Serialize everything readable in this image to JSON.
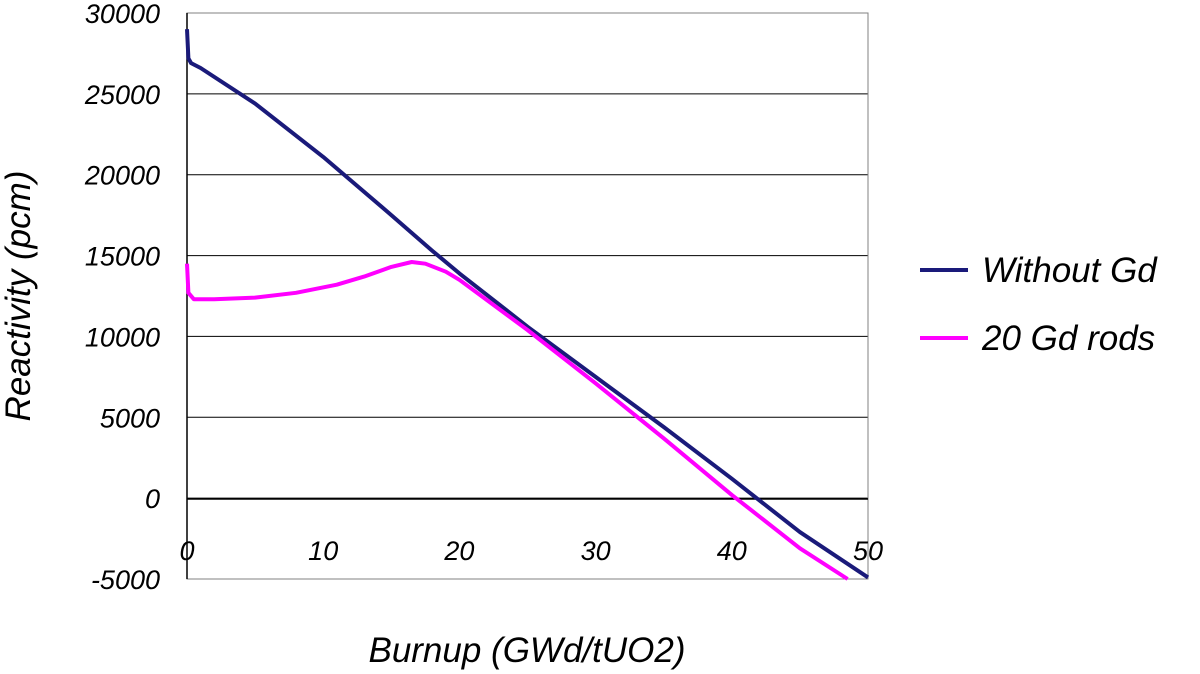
{
  "chart_data": {
    "type": "line",
    "title": "",
    "xlabel": "Burnup (GWd/tUO2)",
    "ylabel": "Reactivity (pcm)",
    "xlim": [
      0,
      50
    ],
    "ylim": [
      -5000,
      30000
    ],
    "x_ticks": [
      "0",
      "10",
      "20",
      "30",
      "40",
      "50"
    ],
    "y_ticks": [
      "-5000",
      "0",
      "5000",
      "10000",
      "15000",
      "20000",
      "25000",
      "30000"
    ],
    "grid": "horizontal",
    "legend_position": "right",
    "series": [
      {
        "name": "Without Gd",
        "color": "#1a1a7a",
        "points": [
          [
            0,
            29000
          ],
          [
            0.1,
            27200
          ],
          [
            0.3,
            26900
          ],
          [
            1,
            26600
          ],
          [
            5,
            24400
          ],
          [
            10,
            21100
          ],
          [
            15,
            17500
          ],
          [
            18,
            15300
          ],
          [
            20,
            13900
          ],
          [
            25,
            10600
          ],
          [
            30,
            7500
          ],
          [
            35,
            4400
          ],
          [
            40,
            1200
          ],
          [
            45,
            -2100
          ],
          [
            50,
            -4900
          ]
        ]
      },
      {
        "name": "20 Gd rods",
        "color": "#ff00ff",
        "points": [
          [
            0,
            14500
          ],
          [
            0.1,
            12700
          ],
          [
            0.5,
            12300
          ],
          [
            2,
            12300
          ],
          [
            5,
            12400
          ],
          [
            8,
            12700
          ],
          [
            11,
            13200
          ],
          [
            13,
            13700
          ],
          [
            15,
            14300
          ],
          [
            16.5,
            14600
          ],
          [
            17.5,
            14500
          ],
          [
            19,
            14000
          ],
          [
            20,
            13500
          ],
          [
            25,
            10400
          ],
          [
            30,
            7100
          ],
          [
            35,
            3700
          ],
          [
            40,
            200
          ],
          [
            45,
            -3100
          ],
          [
            48.5,
            -5000
          ]
        ]
      }
    ]
  }
}
